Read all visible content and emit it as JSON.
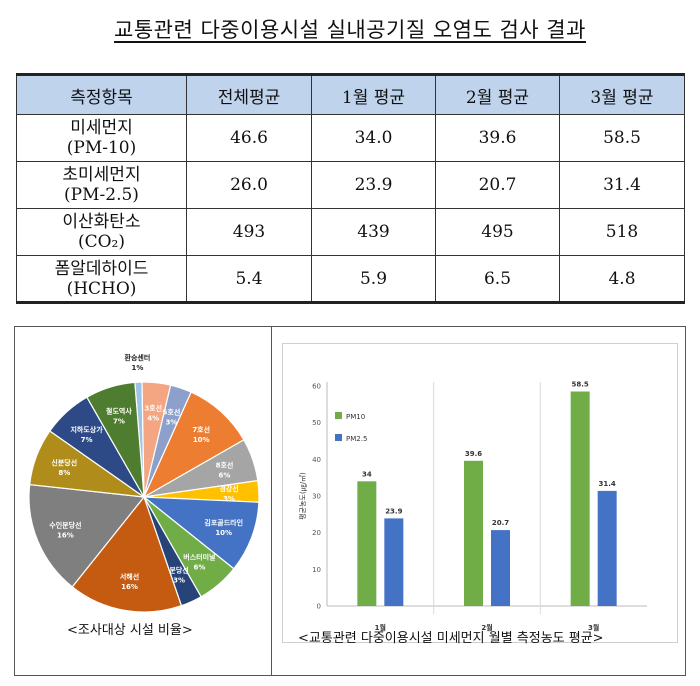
{
  "title": "교통관련 다중이용시설 실내공기질 오염도 검사 결과",
  "table": {
    "headers": [
      "측정항목",
      "전체평균",
      "1월 평균",
      "2월 평균",
      "3월 평균"
    ],
    "rows": [
      {
        "item_line1": "미세먼지",
        "item_line2": "(PM-10)",
        "values": [
          "46.6",
          "34.0",
          "39.6",
          "58.5"
        ]
      },
      {
        "item_line1": "초미세먼지",
        "item_line2": "(PM-2.5)",
        "values": [
          "26.0",
          "23.9",
          "20.7",
          "31.4"
        ]
      },
      {
        "item_line1": "이산화탄소",
        "item_line2": "(CO₂)",
        "values": [
          "493",
          "439",
          "495",
          "518"
        ]
      },
      {
        "item_line1": "폼알데하이드",
        "item_line2": "(HCHO)",
        "values": [
          "5.4",
          "5.9",
          "6.5",
          "4.8"
        ]
      }
    ]
  },
  "pie_caption": "<조사대상 시설 비율>",
  "bar_caption": "<교통관련 다중이용시설 미세먼지 월별 측정농도 평균>",
  "colors": {
    "header_bg": "#bfd3ec",
    "pm10": "#70ad47",
    "pm25": "#4472c4"
  },
  "chart_data": [
    {
      "type": "pie",
      "title": "",
      "slices": [
        {
          "label": "환승센터",
          "pct_label": "1%",
          "value": 1,
          "color": "#9dc3e6"
        },
        {
          "label": "3호선",
          "pct_label": "4%",
          "value": 4,
          "color": "#f4a582"
        },
        {
          "label": "5호선",
          "pct_label": "3%",
          "value": 3,
          "color": "#8da0cb"
        },
        {
          "label": "7호선",
          "pct_label": "10%",
          "value": 10,
          "color": "#ed7d31"
        },
        {
          "label": "8호선",
          "pct_label": "6%",
          "value": 6,
          "color": "#a5a5a5"
        },
        {
          "label": "경강선",
          "pct_label": "3%",
          "value": 3,
          "color": "#ffc000"
        },
        {
          "label": "김포골드라인",
          "pct_label": "10%",
          "value": 10,
          "color": "#4472c4"
        },
        {
          "label": "버스터미널",
          "pct_label": "6%",
          "value": 6,
          "color": "#70ad47"
        },
        {
          "label": "분당선",
          "pct_label": "3%",
          "value": 3,
          "color": "#264478"
        },
        {
          "label": "서해선",
          "pct_label": "16%",
          "value": 16,
          "color": "#c55a11"
        },
        {
          "label": "수인분당선",
          "pct_label": "16%",
          "value": 16,
          "color": "#7f7f7f"
        },
        {
          "label": "신분당선",
          "pct_label": "8%",
          "value": 8,
          "color": "#b08c1a"
        },
        {
          "label": "지하도상가",
          "pct_label": "7%",
          "value": 7,
          "color": "#2e4a86"
        },
        {
          "label": "철도역사",
          "pct_label": "7%",
          "value": 7,
          "color": "#4e7d2f"
        }
      ]
    },
    {
      "type": "bar",
      "title": "",
      "categories": [
        "1월",
        "2월",
        "3월"
      ],
      "series": [
        {
          "name": "PM10",
          "values": [
            34,
            39.6,
            58.5
          ]
        },
        {
          "name": "PM2.5",
          "values": [
            23.9,
            20.7,
            31.4
          ]
        }
      ],
      "ylabel": "평균농도(㎍/㎥)",
      "ylim": [
        0,
        60
      ],
      "yticks": [
        "0",
        "10",
        "20",
        "30",
        "40",
        "50",
        "60"
      ],
      "grid": false,
      "legend": "top-left"
    }
  ]
}
